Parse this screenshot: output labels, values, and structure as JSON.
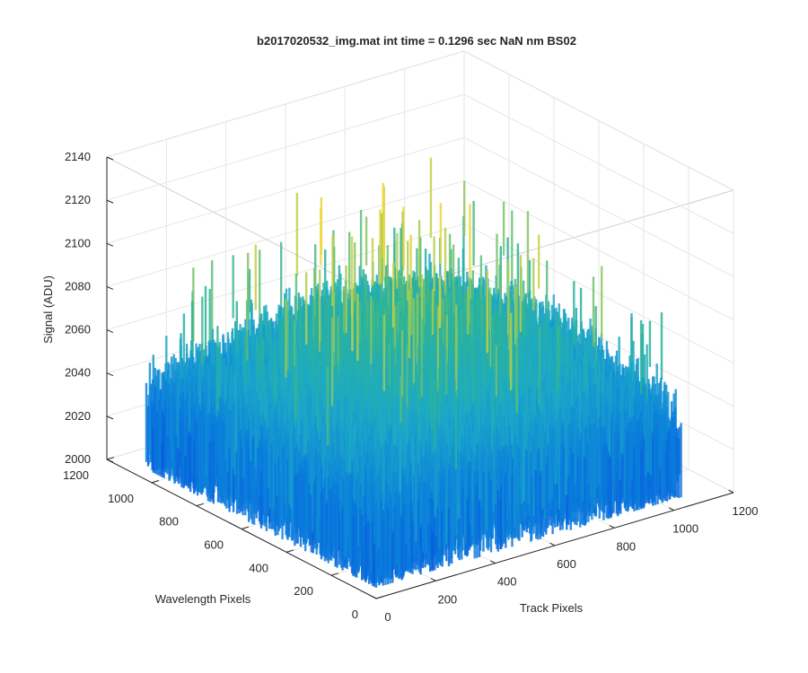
{
  "chart_data": {
    "type": "surface",
    "title": "b2017020532_img.mat int time = 0.1296 sec  NaN nm BS02",
    "xlabel": "Track Pixels",
    "ylabel": "Wavelength Pixels",
    "zlabel": "Signal (ADU)",
    "xlim": [
      0,
      1200
    ],
    "ylim": [
      0,
      1200
    ],
    "zlim": [
      2000,
      2140
    ],
    "xticks": [
      "0",
      "200",
      "400",
      "600",
      "800",
      "1000",
      "1200"
    ],
    "yticks": [
      "0",
      "200",
      "400",
      "600",
      "800",
      "1000",
      "1200"
    ],
    "zticks": [
      "2000",
      "2020",
      "2040",
      "2060",
      "2080",
      "2100",
      "2120",
      "2140"
    ],
    "surface_extent": {
      "x": [
        0,
        1024
      ],
      "y": [
        0,
        1024
      ]
    },
    "signal_baseline": 2035,
    "signal_peak": 2075,
    "signal_noise_range": [
      2005,
      2135
    ],
    "colormap": "parula",
    "grid": true,
    "box": "on"
  },
  "colors": {
    "background": "#ffffff",
    "axis": "#262626",
    "grid": "#e6e6e6",
    "colormap_low": "#0a6fe0",
    "colormap_mid": "#21b3a6",
    "colormap_high": "#d9d33c"
  }
}
